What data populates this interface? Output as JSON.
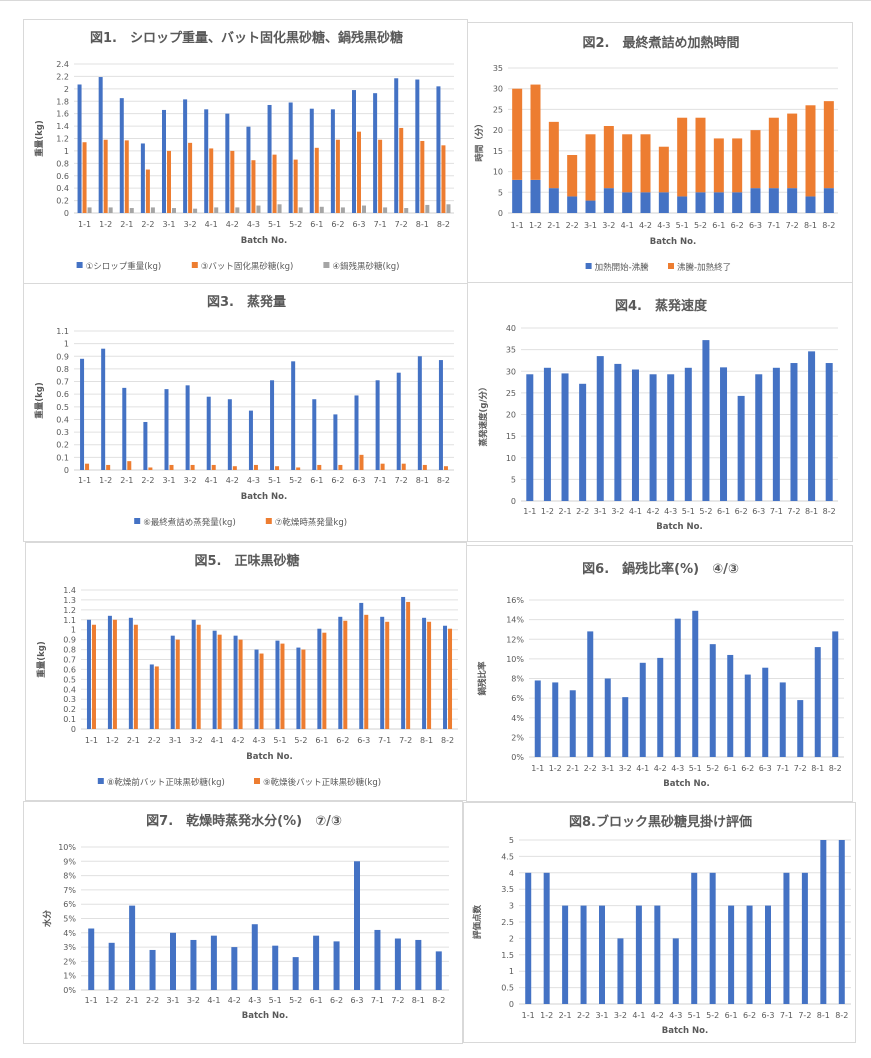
{
  "colors": {
    "blue": "#4472C4",
    "orange": "#ED7D31",
    "gray": "#A5A5A5"
  },
  "chart_data": [
    {
      "id": "fig1",
      "type": "bar",
      "title": "図1.　シロップ重量、バット固化黒砂糖、鍋残黒砂糖",
      "xlabel": "Batch No.",
      "ylabel": "重量(kg)",
      "ylim": [
        0,
        2.4
      ],
      "ystep": 0.2,
      "ytick_format": "dec1",
      "grid": true,
      "legend": "bottom",
      "stacked": false,
      "categories": [
        "1-1",
        "1-2",
        "2-1",
        "2-2",
        "3-1",
        "3-2",
        "4-1",
        "4-2",
        "4-3",
        "5-1",
        "5-2",
        "6-1",
        "6-2",
        "6-3",
        "7-1",
        "7-2",
        "8-1",
        "8-2"
      ],
      "series": [
        {
          "name": "①シロップ重量(kg)",
          "color": "#4472C4",
          "values": [
            2.07,
            2.19,
            1.85,
            1.12,
            1.66,
            1.83,
            1.67,
            1.6,
            1.39,
            1.74,
            1.78,
            1.68,
            1.67,
            1.98,
            1.93,
            2.17,
            2.15,
            2.04
          ]
        },
        {
          "name": "③バット固化黒砂糖(kg)",
          "color": "#ED7D31",
          "values": [
            1.14,
            1.18,
            1.17,
            0.7,
            1.0,
            1.13,
            1.04,
            1.0,
            0.85,
            0.94,
            0.86,
            1.05,
            1.18,
            1.31,
            1.18,
            1.37,
            1.16,
            1.09
          ]
        },
        {
          "name": "④鍋残黒砂糖(kg)",
          "color": "#A5A5A5",
          "values": [
            0.09,
            0.09,
            0.08,
            0.09,
            0.08,
            0.07,
            0.09,
            0.09,
            0.12,
            0.14,
            0.09,
            0.1,
            0.09,
            0.12,
            0.09,
            0.08,
            0.13,
            0.14
          ]
        }
      ]
    },
    {
      "id": "fig2",
      "type": "bar",
      "title": "図2.　最終煮詰め加熱時間",
      "xlabel": "Batch No.",
      "ylabel": "時間（分）",
      "ylim": [
        0,
        35
      ],
      "ystep": 5,
      "ytick_format": "int",
      "grid": true,
      "legend": "bottom",
      "stacked": true,
      "categories": [
        "1-1",
        "1-2",
        "2-1",
        "2-2",
        "3-1",
        "3-2",
        "4-1",
        "4-2",
        "4-3",
        "5-1",
        "5-2",
        "6-1",
        "6-2",
        "6-3",
        "7-1",
        "7-2",
        "8-1",
        "8-2"
      ],
      "series": [
        {
          "name": "加熱開始-沸騰",
          "color": "#4472C4",
          "values": [
            8,
            8,
            6,
            4,
            3,
            6,
            5,
            5,
            5,
            4,
            5,
            5,
            5,
            6,
            6,
            6,
            4,
            6
          ]
        },
        {
          "name": "沸騰-加熱終了",
          "color": "#ED7D31",
          "values": [
            22,
            23,
            16,
            10,
            16,
            15,
            14,
            14,
            11,
            19,
            18,
            13,
            13,
            14,
            17,
            18,
            22,
            21
          ]
        }
      ]
    },
    {
      "id": "fig3",
      "type": "bar",
      "title": "図3.　蒸発量",
      "xlabel": "Batch No.",
      "ylabel": "重量(kg)",
      "ylim": [
        0,
        1.1
      ],
      "ystep": 0.1,
      "ytick_format": "dec1",
      "grid": true,
      "legend": "bottom",
      "stacked": false,
      "categories": [
        "1-1",
        "1-2",
        "2-1",
        "2-2",
        "3-1",
        "3-2",
        "4-1",
        "4-2",
        "4-3",
        "5-1",
        "5-2",
        "6-1",
        "6-2",
        "6-3",
        "7-1",
        "7-2",
        "8-1",
        "8-2"
      ],
      "series": [
        {
          "name": "⑥最終煮詰め蒸発量(kg)",
          "color": "#4472C4",
          "values": [
            0.88,
            0.96,
            0.65,
            0.38,
            0.64,
            0.67,
            0.58,
            0.56,
            0.47,
            0.71,
            0.86,
            0.56,
            0.44,
            0.59,
            0.71,
            0.77,
            0.9,
            0.87
          ]
        },
        {
          "name": "⑦乾燥時蒸発量kg)",
          "color": "#ED7D31",
          "values": [
            0.05,
            0.04,
            0.07,
            0.02,
            0.04,
            0.04,
            0.04,
            0.03,
            0.04,
            0.03,
            0.02,
            0.04,
            0.04,
            0.12,
            0.05,
            0.05,
            0.04,
            0.03
          ]
        }
      ]
    },
    {
      "id": "fig4",
      "type": "bar",
      "title": "図4.　蒸発速度",
      "xlabel": "Batch No.",
      "ylabel": "蒸発速度(g/分）",
      "ylim": [
        0,
        40
      ],
      "ystep": 5,
      "ytick_format": "int",
      "grid": true,
      "legend": "none",
      "stacked": false,
      "categories": [
        "1-1",
        "1-2",
        "2-1",
        "2-2",
        "3-1",
        "3-2",
        "4-1",
        "4-2",
        "4-3",
        "5-1",
        "5-2",
        "6-1",
        "6-2",
        "6-3",
        "7-1",
        "7-2",
        "8-1",
        "8-2"
      ],
      "series": [
        {
          "name": "蒸発速度",
          "color": "#4472C4",
          "values": [
            29.3,
            30.8,
            29.5,
            27.1,
            33.5,
            31.7,
            30.4,
            29.3,
            29.3,
            30.8,
            37.2,
            30.9,
            24.3,
            29.3,
            30.8,
            31.9,
            34.6,
            31.9
          ]
        }
      ]
    },
    {
      "id": "fig5",
      "type": "bar",
      "title": "図5.　正味黒砂糖",
      "xlabel": "Batch No.",
      "ylabel": "重量(kg)",
      "ylim": [
        0,
        1.4
      ],
      "ystep": 0.1,
      "ytick_format": "dec1",
      "grid": true,
      "legend": "bottom",
      "stacked": false,
      "categories": [
        "1-1",
        "1-2",
        "2-1",
        "2-2",
        "3-1",
        "3-2",
        "4-1",
        "4-2",
        "4-3",
        "5-1",
        "5-2",
        "6-1",
        "6-2",
        "6-3",
        "7-1",
        "7-2",
        "8-1",
        "8-2"
      ],
      "series": [
        {
          "name": "⑧乾燥前バット正味黒砂糖(kg)",
          "color": "#4472C4",
          "values": [
            1.1,
            1.14,
            1.12,
            0.65,
            0.94,
            1.1,
            0.99,
            0.94,
            0.8,
            0.89,
            0.82,
            1.01,
            1.13,
            1.27,
            1.13,
            1.33,
            1.12,
            1.04
          ]
        },
        {
          "name": "⑨乾燥後バット正味黒砂糖(kg)",
          "color": "#ED7D31",
          "values": [
            1.05,
            1.1,
            1.05,
            0.63,
            0.9,
            1.05,
            0.95,
            0.9,
            0.76,
            0.86,
            0.8,
            0.97,
            1.09,
            1.15,
            1.08,
            1.28,
            1.08,
            1.01
          ]
        }
      ]
    },
    {
      "id": "fig6",
      "type": "bar",
      "title": "図6.　鍋残比率(%)　④/③",
      "xlabel": "Batch No.",
      "ylabel": "鍋残比率",
      "ylim": [
        0,
        16
      ],
      "ystep": 2,
      "ytick_format": "pct",
      "grid": true,
      "legend": "none",
      "stacked": false,
      "categories": [
        "1-1",
        "1-2",
        "2-1",
        "2-2",
        "3-1",
        "3-2",
        "4-1",
        "4-2",
        "4-3",
        "5-1",
        "5-2",
        "6-1",
        "6-2",
        "6-3",
        "7-1",
        "7-2",
        "8-1",
        "8-2"
      ],
      "series": [
        {
          "name": "鍋残比率",
          "color": "#4472C4",
          "values": [
            7.8,
            7.6,
            6.8,
            12.8,
            8.0,
            6.1,
            9.6,
            10.1,
            14.1,
            14.9,
            11.5,
            10.4,
            8.4,
            9.1,
            7.6,
            5.8,
            11.2,
            12.8
          ]
        }
      ]
    },
    {
      "id": "fig7",
      "type": "bar",
      "title": "図7.　乾燥時蒸発水分(%)　⑦/③",
      "xlabel": "Batch No.",
      "ylabel": "水分",
      "ylim": [
        0,
        10
      ],
      "ystep": 1,
      "ytick_format": "pct",
      "grid": true,
      "legend": "none",
      "stacked": false,
      "categories": [
        "1-1",
        "1-2",
        "2-1",
        "2-2",
        "3-1",
        "3-2",
        "4-1",
        "4-2",
        "4-3",
        "5-1",
        "5-2",
        "6-1",
        "6-2",
        "6-3",
        "7-1",
        "7-2",
        "8-1",
        "8-2"
      ],
      "series": [
        {
          "name": "水分",
          "color": "#4472C4",
          "values": [
            4.3,
            3.3,
            5.9,
            2.8,
            4.0,
            3.5,
            3.8,
            3.0,
            4.6,
            3.1,
            2.3,
            3.8,
            3.4,
            9.0,
            4.2,
            3.6,
            3.5,
            2.7
          ]
        }
      ]
    },
    {
      "id": "fig8",
      "type": "bar",
      "title": "図8.ブロック黒砂糖見掛け評価",
      "xlabel": "Batch No.",
      "ylabel": "評価点数",
      "ylim": [
        0,
        5
      ],
      "ystep": 0.5,
      "ytick_format": "auto",
      "grid": true,
      "legend": "none",
      "stacked": false,
      "categories": [
        "1-1",
        "1-2",
        "2-1",
        "2-2",
        "3-1",
        "3-2",
        "4-1",
        "4-2",
        "4-3",
        "5-1",
        "5-2",
        "6-1",
        "6-2",
        "6-3",
        "7-1",
        "7-2",
        "8-1",
        "8-2"
      ],
      "series": [
        {
          "name": "評価点数",
          "color": "#4472C4",
          "values": [
            4,
            4,
            3,
            3,
            3,
            2,
            3,
            3,
            2,
            4,
            4,
            3,
            3,
            3,
            4,
            4,
            5,
            5
          ]
        }
      ]
    }
  ]
}
